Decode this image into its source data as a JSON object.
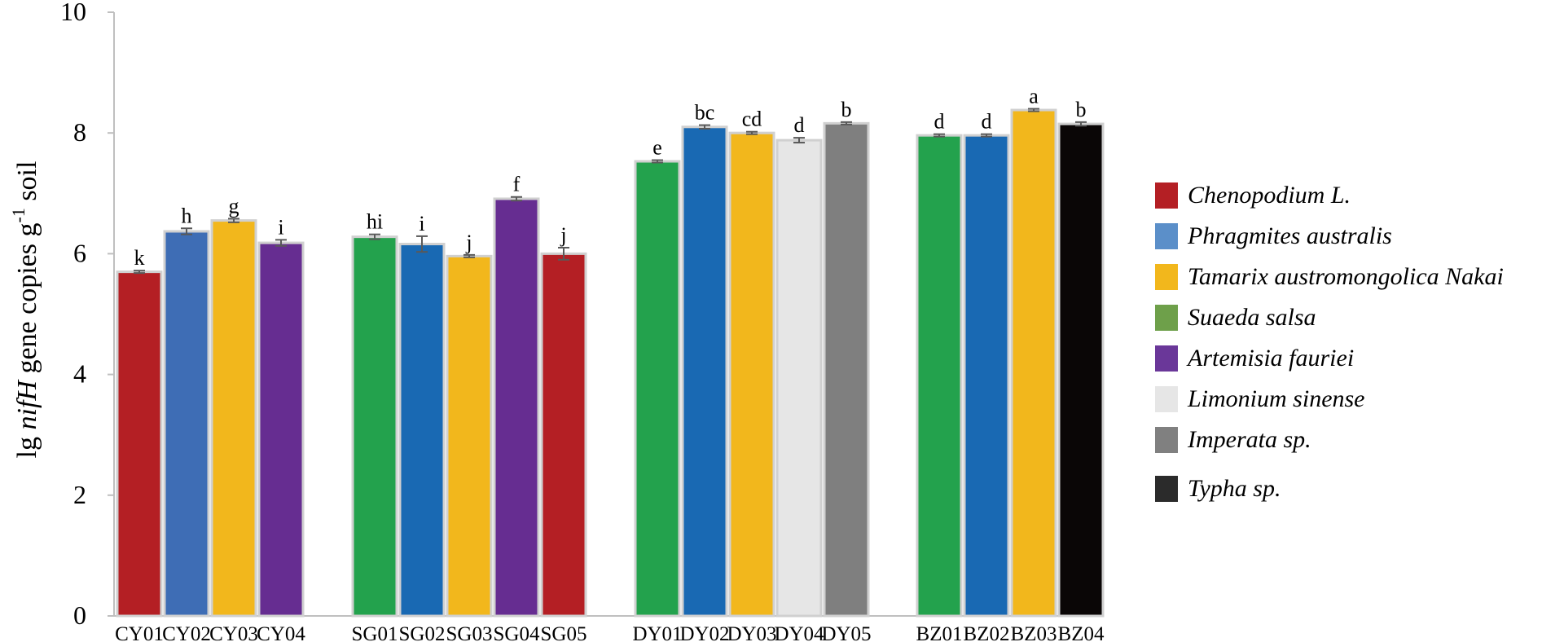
{
  "chart_data": {
    "type": "bar",
    "ylabel_parts": {
      "pre": "lg ",
      "italic": "nifH",
      "mid": " gene copies g",
      "sup": "-1",
      "post": " soil"
    },
    "ylim": [
      0,
      10
    ],
    "yticks": [
      "0",
      "2",
      "4",
      "6",
      "8",
      "10"
    ],
    "grid": false,
    "legend_position": "right",
    "categories": [
      "CY01",
      "CY02",
      "CY03",
      "CY04",
      "SG01",
      "SG02",
      "SG03",
      "SG04",
      "SG05",
      "DY01",
      "DY02",
      "DY03",
      "DY04",
      "DY05",
      "BZ01",
      "BZ02",
      "BZ03",
      "BZ04"
    ],
    "groups": [
      [
        "CY01",
        "CY02",
        "CY03",
        "CY04"
      ],
      [
        "SG01",
        "SG02",
        "SG03",
        "SG04",
        "SG05"
      ],
      [
        "DY01",
        "DY02",
        "DY03",
        "DY04",
        "DY05"
      ],
      [
        "BZ01",
        "BZ02",
        "BZ03",
        "BZ04"
      ]
    ],
    "bars": [
      {
        "label": "CY01",
        "value": 5.7,
        "error": 0.02,
        "letter": "k",
        "species": "Chenopodium L."
      },
      {
        "label": "CY02",
        "value": 6.37,
        "error": 0.05,
        "letter": "h",
        "species": "Phragmites australis"
      },
      {
        "label": "CY03",
        "value": 6.55,
        "error": 0.03,
        "letter": "g",
        "species": "Tamarix austromongolica Nakai"
      },
      {
        "label": "CY04",
        "value": 6.18,
        "error": 0.05,
        "letter": "i",
        "species": "Artemisia fauriei"
      },
      {
        "label": "SG01",
        "value": 6.28,
        "error": 0.04,
        "letter": "hi",
        "species": "Suaeda salsa"
      },
      {
        "label": "SG02",
        "value": 6.16,
        "error": 0.13,
        "letter": "i",
        "species": "Phragmites australis"
      },
      {
        "label": "SG03",
        "value": 5.96,
        "error": 0.02,
        "letter": "j",
        "species": "Tamarix austromongolica Nakai"
      },
      {
        "label": "SG04",
        "value": 6.91,
        "error": 0.03,
        "letter": "f",
        "species": "Artemisia fauriei"
      },
      {
        "label": "SG05",
        "value": 6.0,
        "error": 0.1,
        "letter": "j",
        "species": "Chenopodium L."
      },
      {
        "label": "DY01",
        "value": 7.53,
        "error": 0.02,
        "letter": "e",
        "species": "Suaeda salsa"
      },
      {
        "label": "DY02",
        "value": 8.1,
        "error": 0.03,
        "letter": "bc",
        "species": "Phragmites australis"
      },
      {
        "label": "DY03",
        "value": 8.0,
        "error": 0.02,
        "letter": "cd",
        "species": "Tamarix austromongolica Nakai"
      },
      {
        "label": "DY04",
        "value": 7.88,
        "error": 0.04,
        "letter": "d",
        "species": "Limonium sinense"
      },
      {
        "label": "DY05",
        "value": 8.16,
        "error": 0.02,
        "letter": "b",
        "species": "Imperata sp."
      },
      {
        "label": "BZ01",
        "value": 7.96,
        "error": 0.02,
        "letter": "d",
        "species": "Suaeda salsa"
      },
      {
        "label": "BZ02",
        "value": 7.96,
        "error": 0.02,
        "letter": "d",
        "species": "Phragmites australis"
      },
      {
        "label": "BZ03",
        "value": 8.38,
        "error": 0.02,
        "letter": "a",
        "species": "Tamarix austromongolica Nakai"
      },
      {
        "label": "BZ04",
        "value": 8.15,
        "error": 0.03,
        "letter": "b",
        "species": "Typha sp."
      }
    ],
    "bar_colors": {
      "Chenopodium L.": "#b41f24",
      "Phragmites australis": "#1969b3",
      "Phragmites australis CY02": "#3e6db5",
      "Tamarix austromongolica Nakai": "#f2b71c",
      "Suaeda salsa": "#23a24d",
      "Artemisia fauriei": "#662d91",
      "Limonium sinense": "#e6e6e6",
      "Imperata sp.": "#7f7f7f",
      "Typha sp.": "#0a0606"
    },
    "legend": [
      {
        "name": "Chenopodium L.",
        "color": "#b41f24"
      },
      {
        "name": "Phragmites australis",
        "color": "#5b8fc9"
      },
      {
        "name": "Tamarix austromongolica Nakai",
        "color": "#f2b71c"
      },
      {
        "name": "Suaeda salsa",
        "color": "#6ea04a"
      },
      {
        "name": "Artemisia fauriei",
        "color": "#6a3799"
      },
      {
        "name": "Limonium sinense",
        "color": "#e6e6e6"
      },
      {
        "name": "Imperata sp.",
        "color": "#808080"
      },
      {
        "name": "Typha sp.",
        "color": "#2b2b2b"
      }
    ]
  }
}
